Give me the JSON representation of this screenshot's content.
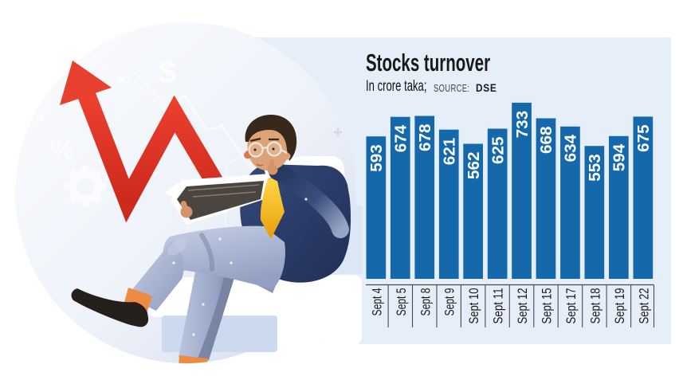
{
  "header": {
    "title": "Stocks turnover",
    "subtitle": "In crore taka;",
    "source_label": "SOURCE:",
    "source_value": "DSE"
  },
  "chart_data": {
    "type": "bar",
    "title": "Stocks turnover",
    "subtitle": "In crore taka",
    "source": "DSE",
    "categories": [
      "Sept 4",
      "Sept 5",
      "Sept 8",
      "Sept 9",
      "Sept 10",
      "Sept 11",
      "Sept 12",
      "Sept 15",
      "Sept 17",
      "Sept 18",
      "Sept 19",
      "Sept 22"
    ],
    "values": [
      593,
      674,
      678,
      621,
      562,
      625,
      733,
      668,
      634,
      553,
      594,
      675
    ],
    "xlabel": "",
    "ylabel": "In crore taka",
    "ylim": [
      0,
      760
    ],
    "grid": false,
    "legend": false,
    "bar_color": "#1569aa",
    "value_label_color": "#ffffff",
    "category_label_color": "#1a1a1a",
    "axis_line_color": "#4c4c4c",
    "value_labels_position": "inside-top rotated -90",
    "category_labels_rotation": -90
  },
  "illustration": {
    "subject": "man in navy suit and yellow tie reading papers in a white armchair, red zigzag arrow rising over light blue circle",
    "decor_icons": [
      "dollar-sign",
      "percent-sign",
      "gears",
      "line-chart",
      "plus-marks"
    ],
    "icon_glyphs": {
      "dollar": "$",
      "percent": "%"
    },
    "colors": {
      "circle": "#e7ecf7",
      "arrow_red": "#e23427",
      "suit_navy": "#2b3f66",
      "tie_yellow": "#f6c433",
      "pants": "#a9b6d4",
      "skin": "#dda276",
      "panel": "#e6eff9"
    }
  }
}
